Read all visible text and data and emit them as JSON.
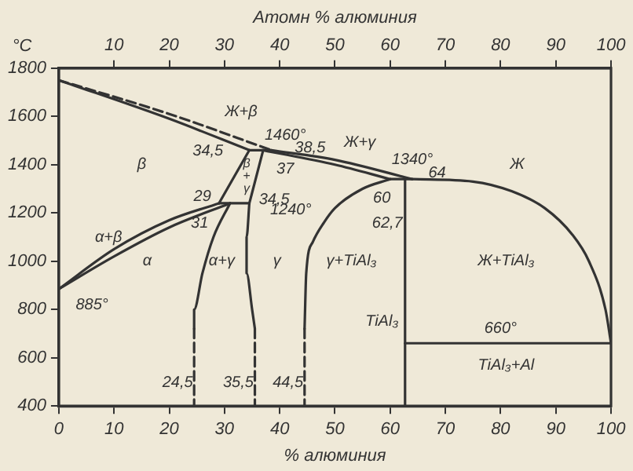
{
  "chart_data": {
    "type": "line",
    "xlabel": "% алюминия",
    "x2label": "Атомн % алюминия",
    "ylabel": "°C",
    "xlim": [
      0,
      100
    ],
    "xticks": [
      0,
      10,
      20,
      30,
      40,
      50,
      60,
      70,
      80,
      90,
      100
    ],
    "x2lim": [
      0,
      100
    ],
    "x2ticks": [
      10,
      20,
      30,
      40,
      50,
      60,
      70,
      80,
      90,
      100
    ],
    "ylim": [
      400,
      1800
    ],
    "yticks": [
      400,
      600,
      800,
      1000,
      1200,
      1400,
      1600,
      1800
    ],
    "grid": false,
    "legend": false,
    "marker": "none",
    "series": [
      {
        "color": "#333333",
        "line_style": "dashed",
        "x": [
          0,
          20,
          38.5
        ],
        "values": [
          1750,
          1610,
          1460
        ]
      },
      {
        "color": "#333333",
        "line_style": "solid",
        "x": [
          0,
          20,
          34.5
        ],
        "values": [
          1750,
          1590,
          1460
        ]
      },
      {
        "color": "#333333",
        "line_style": "solid",
        "x": [
          34.5,
          38.5
        ],
        "values": [
          1460,
          1460
        ]
      },
      {
        "color": "#333333",
        "line_style": "solid",
        "x": [
          38.5,
          50,
          64
        ],
        "values": [
          1460,
          1420,
          1340
        ]
      },
      {
        "color": "#333333",
        "line_style": "solid",
        "x": [
          37,
          50,
          60
        ],
        "values": [
          1460,
          1400,
          1340
        ]
      },
      {
        "color": "#333333",
        "line_style": "solid",
        "x": [
          60,
          64
        ],
        "values": [
          1340,
          1340
        ]
      },
      {
        "color": "#333333",
        "line_style": "solid",
        "x": [
          64,
          75,
          82,
          88,
          93,
          96,
          99,
          100
        ],
        "values": [
          1340,
          1330,
          1290,
          1220,
          1110,
          1000,
          800,
          660
        ]
      },
      {
        "color": "#333333",
        "line_style": "solid",
        "x": [
          60,
          55,
          50,
          48,
          46,
          44.8,
          44.5
        ],
        "values": [
          1340,
          1300,
          1220,
          1160,
          1080,
          950,
          720
        ]
      },
      {
        "color": "#333333",
        "line_style": "dashed",
        "x": [
          44.5,
          44.5
        ],
        "values": [
          720,
          400
        ]
      },
      {
        "color": "#333333",
        "line_style": "solid",
        "x": [
          62.7,
          62.7
        ],
        "values": [
          1340,
          400
        ]
      },
      {
        "color": "#333333",
        "line_style": "solid",
        "x": [
          62.7,
          100
        ],
        "values": [
          660,
          660
        ]
      },
      {
        "color": "#333333",
        "line_style": "solid",
        "x": [
          34.5,
          29
        ],
        "values": [
          1460,
          1240
        ]
      },
      {
        "color": "#333333",
        "line_style": "solid",
        "x": [
          37,
          34.5
        ],
        "values": [
          1460,
          1240
        ]
      },
      {
        "color": "#333333",
        "line_style": "solid",
        "x": [
          29,
          34.5
        ],
        "values": [
          1240,
          1240
        ]
      },
      {
        "color": "#333333",
        "line_style": "solid",
        "x": [
          0,
          10,
          20,
          29
        ],
        "values": [
          885,
          1050,
          1170,
          1240
        ]
      },
      {
        "color": "#333333",
        "line_style": "solid",
        "x": [
          0,
          10,
          20,
          31
        ],
        "values": [
          885,
          1020,
          1140,
          1240
        ]
      },
      {
        "color": "#333333",
        "line_style": "solid",
        "x": [
          31,
          28,
          26,
          24.5,
          24.5
        ],
        "values": [
          1240,
          1100,
          950,
          800,
          720
        ]
      },
      {
        "color": "#333333",
        "line_style": "dashed",
        "x": [
          24.5,
          24.5
        ],
        "values": [
          720,
          400
        ]
      },
      {
        "color": "#333333",
        "line_style": "solid",
        "x": [
          34.5,
          34,
          34,
          35,
          35.5
        ],
        "values": [
          1240,
          1100,
          950,
          800,
          720
        ]
      },
      {
        "color": "#333333",
        "line_style": "dashed",
        "x": [
          35.5,
          35.5
        ],
        "values": [
          720,
          400
        ]
      }
    ],
    "annotations": [
      "Ж+β",
      "1460°",
      "38,5",
      "34,5",
      "37",
      "β",
      "β+γ",
      "29",
      "31",
      "34,5",
      "1240°",
      "α+β",
      "885°",
      "α",
      "α+γ",
      "γ",
      "γ+TiAl₃",
      "Ж+γ",
      "1340°",
      "60",
      "64",
      "Ж",
      "62,7",
      "TiAl₃",
      "Ж+TiAl₃",
      "660°",
      "TiAl₃+Al",
      "24,5",
      "35,5",
      "44,5"
    ]
  }
}
